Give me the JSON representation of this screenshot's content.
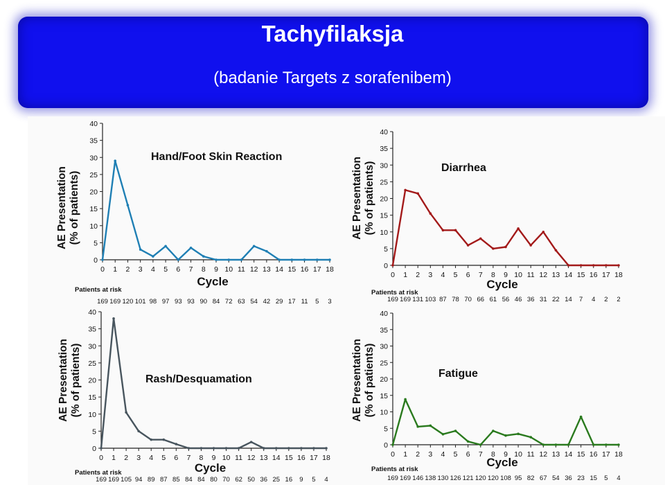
{
  "header": {
    "title": "Tachyfilaksja",
    "subtitle": "(badanie Targets z sorafenibem)"
  },
  "chart_data": [
    {
      "type": "line",
      "title": "Hand/Foot Skin Reaction",
      "xlabel": "Cycle",
      "ylabel": "AE Presentation (% of patients)",
      "color": "#1f7fb4",
      "x": [
        0,
        1,
        2,
        3,
        4,
        5,
        6,
        7,
        8,
        9,
        10,
        11,
        12,
        13,
        14,
        15,
        16,
        17,
        18
      ],
      "values": [
        0,
        29,
        16,
        3,
        1,
        4,
        0,
        3.5,
        1,
        0,
        0,
        0,
        4,
        2.5,
        0,
        0,
        0,
        0,
        0
      ],
      "xvals": [
        0,
        1,
        2,
        3,
        4,
        5,
        6,
        7,
        8,
        9,
        10,
        11,
        12,
        13,
        14,
        15,
        16,
        17,
        18
      ],
      "ylim": [
        0,
        40
      ],
      "yticks": [
        0,
        5,
        10,
        15,
        20,
        25,
        30,
        35,
        40
      ],
      "risk_label": "Patients at risk",
      "patients_at_risk": [
        "169",
        "169",
        "120",
        "101",
        "98",
        "97",
        "93",
        "93",
        "90",
        "84",
        "72",
        "63",
        "54",
        "42",
        "29",
        "17",
        "11",
        "5",
        "3"
      ]
    },
    {
      "type": "line",
      "title": "Diarrhea",
      "xlabel": "Cycle",
      "ylabel": "AE Presentation (% of patients)",
      "color": "#a31a1a",
      "x": [
        0,
        1,
        2,
        3,
        4,
        5,
        6,
        7,
        8,
        9,
        10,
        11,
        12,
        13,
        14,
        15,
        16,
        17,
        18
      ],
      "values": [
        0,
        22.5,
        21.5,
        15.5,
        10.5,
        10.5,
        6,
        8,
        5,
        5.5,
        11,
        6,
        10,
        4.5,
        0,
        0,
        0,
        0,
        0
      ],
      "xvals": [
        0,
        1,
        2,
        3,
        4,
        5,
        6,
        7,
        8,
        9,
        10,
        11,
        12,
        13,
        14,
        15,
        16,
        17,
        18
      ],
      "ylim": [
        0,
        40
      ],
      "yticks": [
        0,
        5,
        10,
        15,
        20,
        25,
        30,
        35,
        40
      ],
      "risk_label": "Patients at risk",
      "patients_at_risk": [
        "169",
        "169",
        "131",
        "103",
        "87",
        "78",
        "70",
        "66",
        "61",
        "56",
        "46",
        "36",
        "31",
        "22",
        "14",
        "7",
        "4",
        "2",
        "2"
      ]
    },
    {
      "type": "line",
      "title": "Rash/Desquamation",
      "xlabel": "Cycle",
      "ylabel": "AE Presentation (% of patients)",
      "color": "#48555e",
      "x": [
        0,
        1,
        2,
        3,
        4,
        5,
        6,
        7,
        8,
        9,
        10,
        11,
        12,
        13,
        14,
        15,
        16,
        17,
        18
      ],
      "values": [
        0,
        38,
        10.5,
        5,
        2.5,
        2.5,
        1.2,
        0,
        0,
        0,
        0,
        0,
        1.8,
        0,
        0,
        0,
        0,
        0,
        0
      ],
      "xvals": [
        0,
        1,
        2,
        3,
        4,
        5,
        6,
        7,
        8,
        9,
        10,
        11,
        12,
        13,
        14,
        15,
        16,
        17,
        18
      ],
      "ylim": [
        0,
        40
      ],
      "yticks": [
        0,
        5,
        10,
        15,
        20,
        25,
        30,
        35,
        40
      ],
      "risk_label": "Patients at risk",
      "patients_at_risk": [
        "169",
        "169",
        "105",
        "94",
        "89",
        "87",
        "85",
        "84",
        "84",
        "80",
        "70",
        "62",
        "50",
        "36",
        "25",
        "16",
        "9",
        "5",
        "4"
      ]
    },
    {
      "type": "line",
      "title": "Fatigue",
      "xlabel": "Cycle",
      "ylabel": "AE Presentation (% of patients)",
      "color": "#2a7a1e",
      "x": [
        0,
        1,
        2,
        3,
        4,
        5,
        6,
        7,
        8,
        9,
        10,
        11,
        12,
        13,
        14,
        15,
        16,
        17,
        18
      ],
      "values": [
        0,
        13.8,
        5.5,
        5.8,
        3.2,
        4.2,
        1,
        0,
        4.2,
        2.8,
        3.3,
        2.3,
        0,
        0,
        0,
        8.5,
        0,
        0,
        0
      ],
      "xvals": [
        0,
        1,
        2,
        3,
        4,
        5,
        6,
        7,
        8,
        9,
        10,
        11,
        12,
        13,
        14,
        15,
        16,
        17,
        18
      ],
      "ylim": [
        0,
        40
      ],
      "yticks": [
        0,
        5,
        10,
        15,
        20,
        25,
        30,
        35,
        40
      ],
      "risk_label": "Patients at risk",
      "patients_at_risk": [
        "169",
        "169",
        "146",
        "138",
        "130",
        "126",
        "121",
        "120",
        "120",
        "108",
        "95",
        "82",
        "67",
        "54",
        "36",
        "23",
        "15",
        "5",
        "4"
      ]
    }
  ]
}
